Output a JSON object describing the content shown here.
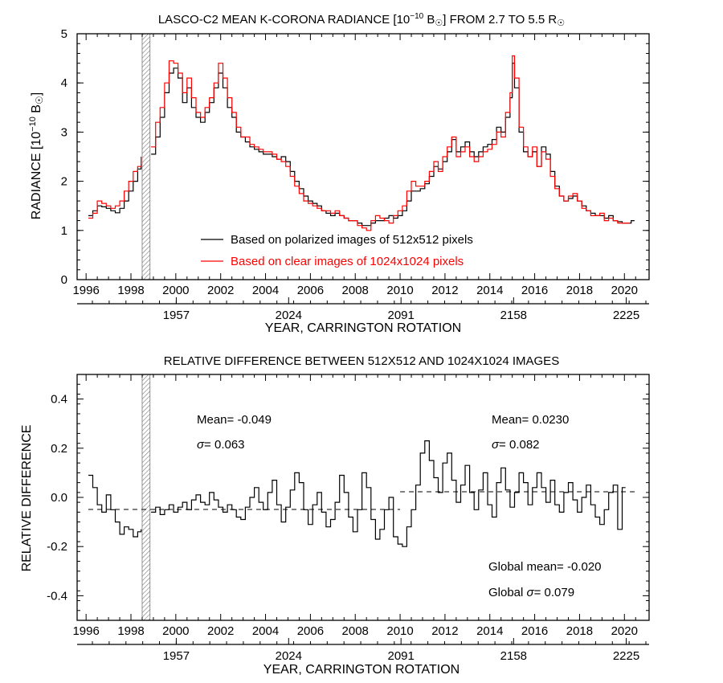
{
  "colors": {
    "black_series": "#000000",
    "red_series": "#ff0000",
    "hatch": "#777777"
  },
  "chart_data": [
    {
      "type": "line",
      "title_main": "LASCO-C2 MEAN K-CORONA RADIANCE [10",
      "title_exp": "−10",
      "title_unit": " B",
      "title_sun": "☉",
      "title_rest": "] FROM 2.7 TO 5.5 R",
      "title_end": "☉",
      "ylabel_main": "RADIANCE [10",
      "ylabel_exp": "−10",
      "ylabel_unit": " B",
      "ylabel_sun": "☉",
      "ylabel_close": "]",
      "xlabel": "YEAR, CARRINGTON ROTATION",
      "xlim": [
        1995.6,
        2021.1
      ],
      "ylim": [
        0,
        5
      ],
      "x_ticks": [
        "1996",
        "1998",
        "2000",
        "2002",
        "2004",
        "2006",
        "2008",
        "2010",
        "2012",
        "2014",
        "2016",
        "2018",
        "2020"
      ],
      "y_ticks": [
        "0",
        "1",
        "2",
        "3",
        "4",
        "5"
      ],
      "cr_ticks": [
        {
          "label": "1957",
          "year": 2000.02
        },
        {
          "label": "2024",
          "year": 2005.03
        },
        {
          "label": "2091",
          "year": 2010.04
        },
        {
          "label": "2158",
          "year": 2015.06
        },
        {
          "label": "2225",
          "year": 2020.08
        }
      ],
      "data_gap": [
        1998.5,
        1998.85
      ],
      "legend": [
        "Based on polarized images of 512x512 pixels",
        "Based on clear images of 1024x1024 pixels"
      ],
      "legend_position": "lower-center",
      "series": [
        {
          "name": "Based on polarized images of 512x512 pixels",
          "color": "#000000",
          "x": [
            1996.1,
            1996.3,
            1996.5,
            1996.7,
            1996.9,
            1997.1,
            1997.3,
            1997.5,
            1997.7,
            1997.9,
            1998.1,
            1998.3,
            1998.45,
            1998.9,
            1999.1,
            1999.3,
            1999.5,
            1999.7,
            1999.9,
            2000.1,
            2000.3,
            2000.5,
            2000.7,
            2000.9,
            2001.1,
            2001.3,
            2001.5,
            2001.7,
            2001.9,
            2002.1,
            2002.3,
            2002.5,
            2002.7,
            2002.9,
            2003.1,
            2003.3,
            2003.5,
            2003.7,
            2003.9,
            2004.1,
            2004.3,
            2004.5,
            2004.7,
            2004.9,
            2005.1,
            2005.3,
            2005.5,
            2005.7,
            2005.9,
            2006.1,
            2006.3,
            2006.5,
            2006.7,
            2006.9,
            2007.1,
            2007.3,
            2007.5,
            2007.7,
            2007.9,
            2008.1,
            2008.3,
            2008.5,
            2008.7,
            2008.9,
            2009.1,
            2009.3,
            2009.5,
            2009.7,
            2009.9,
            2010.1,
            2010.3,
            2010.5,
            2010.7,
            2010.9,
            2011.1,
            2011.3,
            2011.5,
            2011.7,
            2011.9,
            2012.1,
            2012.3,
            2012.5,
            2012.7,
            2012.9,
            2013.1,
            2013.3,
            2013.5,
            2013.7,
            2013.9,
            2014.1,
            2014.3,
            2014.5,
            2014.7,
            2014.9,
            2015.0,
            2015.1,
            2015.3,
            2015.5,
            2015.7,
            2015.9,
            2016.1,
            2016.3,
            2016.5,
            2016.7,
            2016.9,
            2017.1,
            2017.3,
            2017.5,
            2017.7,
            2017.9,
            2018.1,
            2018.3,
            2018.5,
            2018.7,
            2018.9,
            2019.1,
            2019.3,
            2019.5,
            2019.7,
            2019.9,
            2020.1,
            2020.3
          ],
          "y": [
            1.3,
            1.4,
            1.5,
            1.48,
            1.45,
            1.4,
            1.36,
            1.45,
            1.6,
            1.8,
            2.0,
            2.25,
            2.35,
            2.55,
            2.9,
            3.3,
            3.8,
            4.2,
            4.3,
            4.1,
            3.6,
            3.9,
            3.5,
            3.3,
            3.2,
            3.4,
            3.6,
            3.9,
            4.2,
            3.9,
            3.5,
            3.3,
            3.0,
            2.9,
            2.8,
            2.7,
            2.65,
            2.6,
            2.55,
            2.55,
            2.5,
            2.45,
            2.5,
            2.4,
            2.2,
            2.0,
            1.85,
            1.7,
            1.6,
            1.55,
            1.5,
            1.4,
            1.35,
            1.3,
            1.35,
            1.3,
            1.25,
            1.2,
            1.2,
            1.15,
            1.1,
            1.1,
            1.15,
            1.2,
            1.2,
            1.25,
            1.3,
            1.25,
            1.3,
            1.4,
            1.6,
            1.8,
            1.8,
            1.85,
            1.95,
            2.1,
            2.3,
            2.25,
            2.4,
            2.6,
            2.85,
            2.6,
            2.7,
            2.8,
            2.6,
            2.5,
            2.6,
            2.7,
            2.75,
            2.85,
            3.1,
            3.0,
            3.3,
            3.7,
            4.4,
            3.9,
            3.0,
            2.6,
            2.5,
            2.6,
            2.3,
            2.7,
            2.55,
            2.2,
            1.9,
            1.7,
            1.6,
            1.65,
            1.7,
            1.6,
            1.5,
            1.4,
            1.35,
            1.3,
            1.3,
            1.25,
            1.3,
            1.2,
            1.18,
            1.15,
            1.15,
            1.2
          ]
        },
        {
          "name": "Based on clear images of 1024x1024 pixels",
          "color": "#ff0000",
          "x": [
            1996.1,
            1996.3,
            1996.5,
            1996.7,
            1996.9,
            1997.1,
            1997.3,
            1997.5,
            1997.7,
            1997.9,
            1998.1,
            1998.3,
            1998.45,
            1998.9,
            1999.1,
            1999.3,
            1999.5,
            1999.7,
            1999.9,
            2000.1,
            2000.3,
            2000.5,
            2000.7,
            2000.9,
            2001.1,
            2001.3,
            2001.5,
            2001.7,
            2001.9,
            2002.1,
            2002.3,
            2002.5,
            2002.7,
            2002.9,
            2003.1,
            2003.3,
            2003.5,
            2003.7,
            2003.9,
            2004.1,
            2004.3,
            2004.5,
            2004.7,
            2004.9,
            2005.1,
            2005.3,
            2005.5,
            2005.7,
            2005.9,
            2006.1,
            2006.3,
            2006.5,
            2006.7,
            2006.9,
            2007.1,
            2007.3,
            2007.5,
            2007.7,
            2007.9,
            2008.1,
            2008.3,
            2008.5,
            2008.7,
            2008.9,
            2009.1,
            2009.3,
            2009.5,
            2009.7,
            2009.9,
            2010.1,
            2010.3,
            2010.5,
            2010.7,
            2010.9,
            2011.1,
            2011.3,
            2011.5,
            2011.7,
            2011.9,
            2012.1,
            2012.3,
            2012.5,
            2012.7,
            2012.9,
            2013.1,
            2013.3,
            2013.5,
            2013.7,
            2013.9,
            2014.1,
            2014.3,
            2014.5,
            2014.7,
            2014.9,
            2015.0,
            2015.1,
            2015.3,
            2015.5,
            2015.7,
            2015.9,
            2016.1,
            2016.3,
            2016.5,
            2016.7,
            2016.9,
            2017.1,
            2017.3,
            2017.5,
            2017.7,
            2017.9,
            2018.1,
            2018.3,
            2018.5,
            2018.7,
            2018.9,
            2019.1,
            2019.3,
            2019.5,
            2019.7,
            2019.9,
            2020.1
          ],
          "y": [
            1.25,
            1.35,
            1.6,
            1.55,
            1.5,
            1.45,
            1.5,
            1.6,
            1.8,
            2.0,
            2.2,
            2.3,
            2.5,
            2.7,
            3.2,
            3.5,
            4.0,
            4.45,
            4.4,
            4.2,
            3.8,
            4.1,
            3.7,
            3.4,
            3.3,
            3.5,
            3.7,
            4.0,
            4.4,
            4.1,
            3.7,
            3.4,
            3.1,
            2.9,
            2.9,
            2.75,
            2.7,
            2.65,
            2.6,
            2.6,
            2.55,
            2.45,
            2.4,
            2.3,
            2.1,
            1.9,
            1.75,
            1.6,
            1.55,
            1.5,
            1.45,
            1.4,
            1.4,
            1.35,
            1.4,
            1.3,
            1.25,
            1.2,
            1.2,
            1.1,
            1.05,
            1.0,
            1.2,
            1.3,
            1.25,
            1.2,
            1.15,
            1.3,
            1.4,
            1.5,
            1.8,
            2.0,
            1.9,
            1.9,
            2.0,
            2.2,
            2.4,
            2.2,
            2.5,
            2.7,
            2.9,
            2.5,
            2.6,
            2.7,
            2.5,
            2.4,
            2.5,
            2.6,
            2.65,
            2.75,
            3.0,
            2.9,
            3.4,
            3.8,
            4.55,
            4.1,
            3.1,
            2.7,
            2.5,
            2.7,
            2.3,
            2.6,
            2.45,
            2.1,
            1.85,
            1.7,
            1.6,
            1.7,
            1.75,
            1.6,
            1.45,
            1.4,
            1.3,
            1.3,
            1.35,
            1.2,
            1.25,
            1.2,
            1.15,
            1.15,
            1.15
          ]
        }
      ]
    },
    {
      "type": "line",
      "title": "RELATIVE DIFFERENCE BETWEEN 512X512 AND 1024X1024 IMAGES",
      "ylabel": "RELATIVE DIFFERENCE",
      "xlabel": "YEAR, CARRINGTON ROTATION",
      "xlim": [
        1995.6,
        2021.1
      ],
      "ylim": [
        -0.5,
        0.5
      ],
      "x_ticks": [
        "1996",
        "1998",
        "2000",
        "2002",
        "2004",
        "2006",
        "2008",
        "2010",
        "2012",
        "2014",
        "2016",
        "2018",
        "2020"
      ],
      "y_ticks": [
        "-0.4",
        "-0.2",
        "0.0",
        "0.2",
        "0.4"
      ],
      "cr_ticks": [
        {
          "label": "1957",
          "year": 2000.02
        },
        {
          "label": "2024",
          "year": 2005.03
        },
        {
          "label": "2091",
          "year": 2010.04
        },
        {
          "label": "2158",
          "year": 2015.06
        },
        {
          "label": "2225",
          "year": 2020.08
        }
      ],
      "data_gap": [
        1998.5,
        1998.85
      ],
      "mean_lines": [
        {
          "x_range": [
            1996.1,
            2010.0
          ],
          "y": -0.049
        },
        {
          "x_range": [
            2010.0,
            2020.5
          ],
          "y": 0.023
        }
      ],
      "annotations": {
        "left_mean": "Mean= -0.049",
        "left_sigma_symbol": "σ",
        "left_sigma": "= 0.063",
        "right_mean": "Mean= 0.0230",
        "right_sigma_symbol": "σ",
        "right_sigma": "= 0.082",
        "global_mean": "Global mean= -0.020",
        "global_sigma_prefix": "Global ",
        "global_sigma_symbol": "σ",
        "global_sigma": "= 0.079"
      },
      "series": [
        {
          "name": "relative difference",
          "color": "#000000",
          "x": [
            1996.1,
            1996.3,
            1996.5,
            1996.7,
            1996.9,
            1997.1,
            1997.3,
            1997.5,
            1997.7,
            1997.9,
            1998.1,
            1998.3,
            1998.45,
            1998.9,
            1999.1,
            1999.3,
            1999.5,
            1999.7,
            1999.9,
            2000.1,
            2000.3,
            2000.5,
            2000.7,
            2000.9,
            2001.1,
            2001.3,
            2001.5,
            2001.7,
            2001.9,
            2002.1,
            2002.3,
            2002.5,
            2002.7,
            2002.9,
            2003.1,
            2003.3,
            2003.5,
            2003.7,
            2003.9,
            2004.1,
            2004.3,
            2004.5,
            2004.7,
            2004.9,
            2005.1,
            2005.3,
            2005.5,
            2005.7,
            2005.9,
            2006.1,
            2006.3,
            2006.5,
            2006.7,
            2006.9,
            2007.1,
            2007.3,
            2007.5,
            2007.7,
            2007.9,
            2008.1,
            2008.3,
            2008.5,
            2008.7,
            2008.9,
            2009.1,
            2009.3,
            2009.5,
            2009.7,
            2009.9,
            2010.1,
            2010.3,
            2010.5,
            2010.7,
            2010.9,
            2011.1,
            2011.3,
            2011.5,
            2011.7,
            2011.9,
            2012.1,
            2012.3,
            2012.5,
            2012.7,
            2012.9,
            2013.1,
            2013.3,
            2013.5,
            2013.7,
            2013.9,
            2014.1,
            2014.3,
            2014.5,
            2014.7,
            2014.9,
            2015.1,
            2015.3,
            2015.5,
            2015.7,
            2015.9,
            2016.1,
            2016.3,
            2016.5,
            2016.7,
            2016.9,
            2017.1,
            2017.3,
            2017.5,
            2017.7,
            2017.9,
            2018.1,
            2018.3,
            2018.5,
            2018.7,
            2018.9,
            2019.1,
            2019.3,
            2019.5,
            2019.7,
            2019.9
          ],
          "y": [
            0.09,
            0.04,
            -0.03,
            -0.06,
            0.01,
            -0.05,
            -0.1,
            -0.15,
            -0.12,
            -0.13,
            -0.16,
            -0.14,
            -0.13,
            -0.06,
            -0.04,
            -0.07,
            -0.05,
            -0.03,
            -0.06,
            -0.04,
            -0.02,
            -0.05,
            -0.01,
            0.01,
            -0.02,
            -0.03,
            0.02,
            -0.01,
            -0.04,
            -0.06,
            -0.03,
            -0.05,
            -0.08,
            -0.09,
            -0.04,
            0.0,
            0.04,
            -0.02,
            -0.05,
            0.02,
            0.07,
            -0.03,
            -0.1,
            -0.04,
            0.03,
            0.1,
            0.06,
            -0.05,
            -0.11,
            -0.03,
            0.02,
            -0.06,
            -0.12,
            -0.09,
            -0.02,
            0.09,
            0.02,
            -0.08,
            -0.14,
            -0.05,
            0.1,
            0.04,
            -0.09,
            -0.17,
            -0.13,
            -0.05,
            0.0,
            -0.16,
            -0.19,
            -0.2,
            -0.12,
            -0.05,
            0.05,
            0.18,
            0.23,
            0.15,
            0.08,
            0.02,
            0.14,
            0.18,
            0.07,
            -0.02,
            0.05,
            0.13,
            0.02,
            -0.05,
            0.03,
            0.1,
            -0.03,
            -0.08,
            0.06,
            0.12,
            0.03,
            -0.04,
            0.02,
            0.1,
            0.06,
            -0.03,
            0.04,
            0.1,
            0.04,
            -0.02,
            0.07,
            -0.03,
            -0.06,
            0.02,
            0.06,
            -0.01,
            -0.06,
            0.0,
            0.05,
            -0.03,
            -0.08,
            -0.11,
            -0.05,
            0.02,
            0.05,
            -0.13,
            0.04
          ]
        }
      ]
    }
  ]
}
